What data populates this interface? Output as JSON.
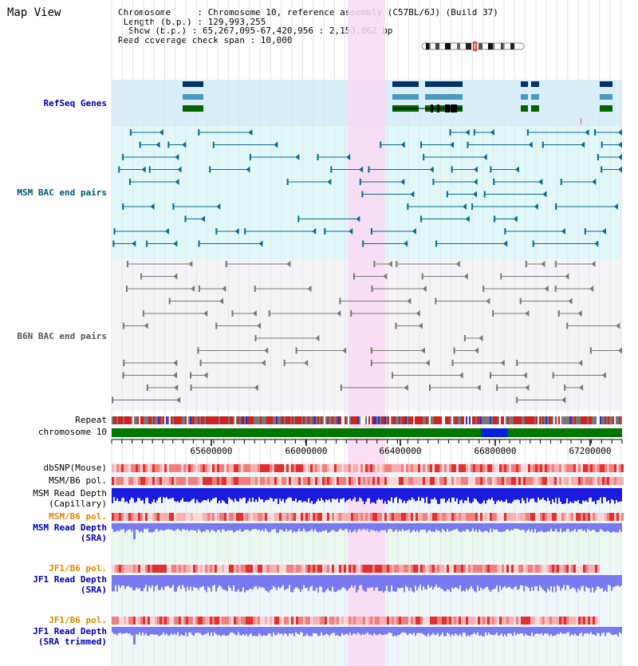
{
  "page": {
    "title": "Map View"
  },
  "header": {
    "chromosome_line": "Chromosome     : Chromosome 10, reference assembly (C57BL/6J) (Build 37)",
    "length_line": " Length (b.p.) : 129,993,255",
    "show_line": "  Show (b.p.) : 65,267,095-67,420,956 : 2,153,862 bp",
    "coverage_line": "Read coverage check span : 10,000"
  },
  "tracks": {
    "refseq": {
      "label": "RefSeq Genes",
      "color": "#0000aa"
    },
    "msm_bac": {
      "label": "MSM BAC end pairs",
      "color": "#005577"
    },
    "b6n_bac": {
      "label": "B6N BAC end pairs",
      "color": "#555555"
    },
    "repeat": {
      "label": "Repeat"
    },
    "chromosome": {
      "label": "chromosome 10"
    },
    "dbsnp": {
      "label": "dbSNP(Mouse)"
    },
    "msm_b6_pol": {
      "label": "MSM/B6 pol."
    },
    "msm_depth_cap": {
      "label": "MSM Read Depth\n(Capillary)"
    },
    "msm_b6_pol_sra": {
      "label": "MSM/B6 pol.",
      "color": "#e08800"
    },
    "msm_depth_sra": {
      "label": "MSM Read Depth\n(SRA)",
      "color": "#0000aa"
    },
    "jf1_b6_pol": {
      "label": "JF1/B6 pol.",
      "color": "#e08800"
    },
    "jf1_depth_sra": {
      "label": "JF1 Read Depth\n(SRA)",
      "color": "#0000aa"
    },
    "jf1_b6_pol_trim": {
      "label": "JF1/B6 pol.",
      "color": "#e08800"
    },
    "jf1_depth_trim": {
      "label": "JF1 Read Depth\n(SRA trimmed)",
      "color": "#0000aa"
    }
  },
  "ruler": {
    "ticks": [
      "65600000",
      "66000000",
      "66400000",
      "66800000",
      "67200000"
    ]
  },
  "colors": {
    "highlight": "#f9d9f3",
    "refseq_bg": "#d8eef8",
    "msm_bg": "#e0f8f8",
    "b6n_bg": "#f4f4f8",
    "sra_bg": "#eaf8ee",
    "gene_dark": "#003366",
    "gene_mid": "#4a9ac0",
    "gene_green": "#006600",
    "msm_line": "#0a6a8a",
    "b6n_line": "#777777",
    "chrom_green": "#007700",
    "chrom_blue": "#0022dd",
    "depth_blue": "#1a1ae0",
    "depth_light": "#7a7af0"
  }
}
